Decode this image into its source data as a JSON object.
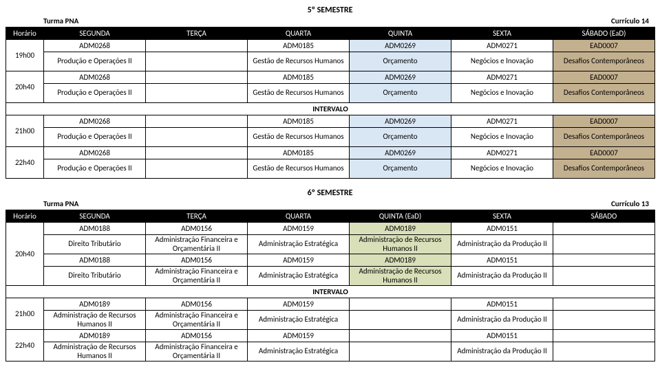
{
  "sem5": {
    "title": "5º SEMESTRE",
    "turma": "Turma PNA",
    "curriculo": "Currículo 14",
    "headers": [
      "Horário",
      "SEGUNDA",
      "TERÇA",
      "QUARTA",
      "QUINTA",
      "SEXTA",
      "SÁBADO (EaD)"
    ],
    "times": [
      "19h00",
      "20h40",
      "21h00",
      "22h40"
    ],
    "intervalo": "INTERVALO",
    "codes": {
      "seg": "ADM0268",
      "qua": "ADM0185",
      "qui": "ADM0269",
      "sex": "ADM0271",
      "sab": "EAD0007"
    },
    "names": {
      "seg": "Produção e Operações II",
      "qua": "Gestão de Recursos Humanos",
      "qui": "Orçamento",
      "sex": "Negócios e Inovação",
      "sab": "Desafios Contemporâneos"
    }
  },
  "sem6": {
    "title": "6º SEMESTRE",
    "turma": "Turma PNA",
    "curriculo": "Currículo 13",
    "headers": [
      "Horário",
      "SEGUNDA",
      "TERÇA",
      "QUARTA",
      "QUINTA (EaD)",
      "SEXTA",
      "SÁBADO"
    ],
    "times": [
      "20h40",
      "21h00",
      "22h40"
    ],
    "intervalo": "INTERVALO",
    "r1": {
      "seg_code": "ADM0188",
      "ter_code": "ADM0156",
      "qua_code": "ADM0159",
      "qui_code": "ADM0189",
      "sex_code": "ADM0151",
      "seg_name": "Direito Tributário",
      "ter_name": "Administração Financeira e Orçamentária II",
      "qua_name": "Administração Estratégica",
      "qui_name": "Administração de Recursos Humanos II",
      "sex_name": "Administração da Produção II"
    },
    "r2": {
      "seg_code": "ADM0189",
      "ter_code": "ADM0156",
      "qua_code": "ADM0159",
      "sex_code": "ADM0151",
      "seg_name": "Administração de Recursos Humanos II",
      "ter_name": "Administração Financeira e Orçamentária II",
      "qua_name": "Administração Estratégica",
      "sex_name": "Administração da Produção II"
    }
  },
  "colors": {
    "blue": "#d9e7f5",
    "brown": "#c3b08f",
    "olive": "#d9dfb8",
    "header_bg": "#000000",
    "header_fg": "#ffffff"
  }
}
